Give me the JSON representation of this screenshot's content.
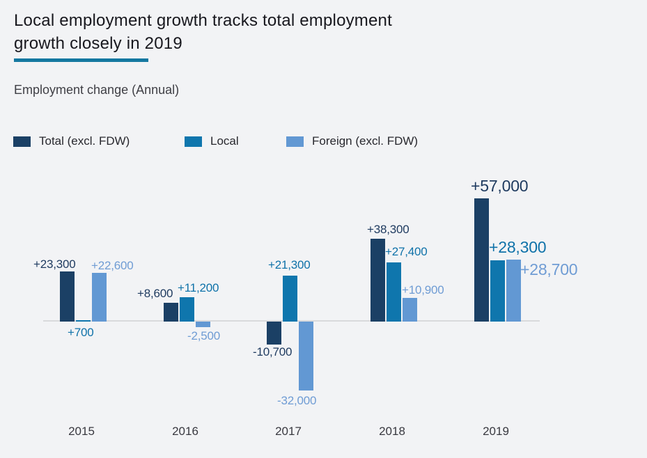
{
  "page": {
    "background": "#f2f3f5"
  },
  "header": {
    "title_line1": "Local employment growth tracks total employment",
    "title_line2": "growth closely in 2019",
    "underline_color": "#1478a0",
    "subtitle": "Employment change (Annual)"
  },
  "legend": [
    {
      "label": "Total (excl. FDW)",
      "color": "#1b4065"
    },
    {
      "label": "Local",
      "color": "#0f76ad"
    },
    {
      "label": "Foreign (excl. FDW)",
      "color": "#6298d3"
    }
  ],
  "chart_data": {
    "type": "bar",
    "title": "Local employment growth tracks total employment growth closely in 2019",
    "subtitle": "Employment change (Annual)",
    "categories": [
      "2015",
      "2016",
      "2017",
      "2018",
      "2019"
    ],
    "series": [
      {
        "name": "Total (excl. FDW)",
        "color": "#1b4065",
        "label_color": "#1e3a5f",
        "values": [
          23300,
          8600,
          -10700,
          38300,
          57000
        ],
        "labels": [
          "+23,300",
          "+8,600",
          "-10,700",
          "+38,300",
          "+57,000"
        ]
      },
      {
        "name": "Local",
        "color": "#0f76ad",
        "label_color": "#0f72a9",
        "values": [
          700,
          11200,
          21300,
          27400,
          28300
        ],
        "labels": [
          "+700",
          "+11,200",
          "+21,300",
          "+27,400",
          "+28,300"
        ]
      },
      {
        "name": "Foreign (excl. FDW)",
        "color": "#6298d3",
        "label_color": "#6f9cd4",
        "values": [
          22600,
          -2500,
          -32000,
          10900,
          28700
        ],
        "labels": [
          "+22,600",
          "-2,500",
          "-32,000",
          "+10,900",
          "+28,700"
        ]
      }
    ],
    "baseline": 0,
    "grid": false,
    "legend_position": "top",
    "highlighted_category": "2019"
  }
}
